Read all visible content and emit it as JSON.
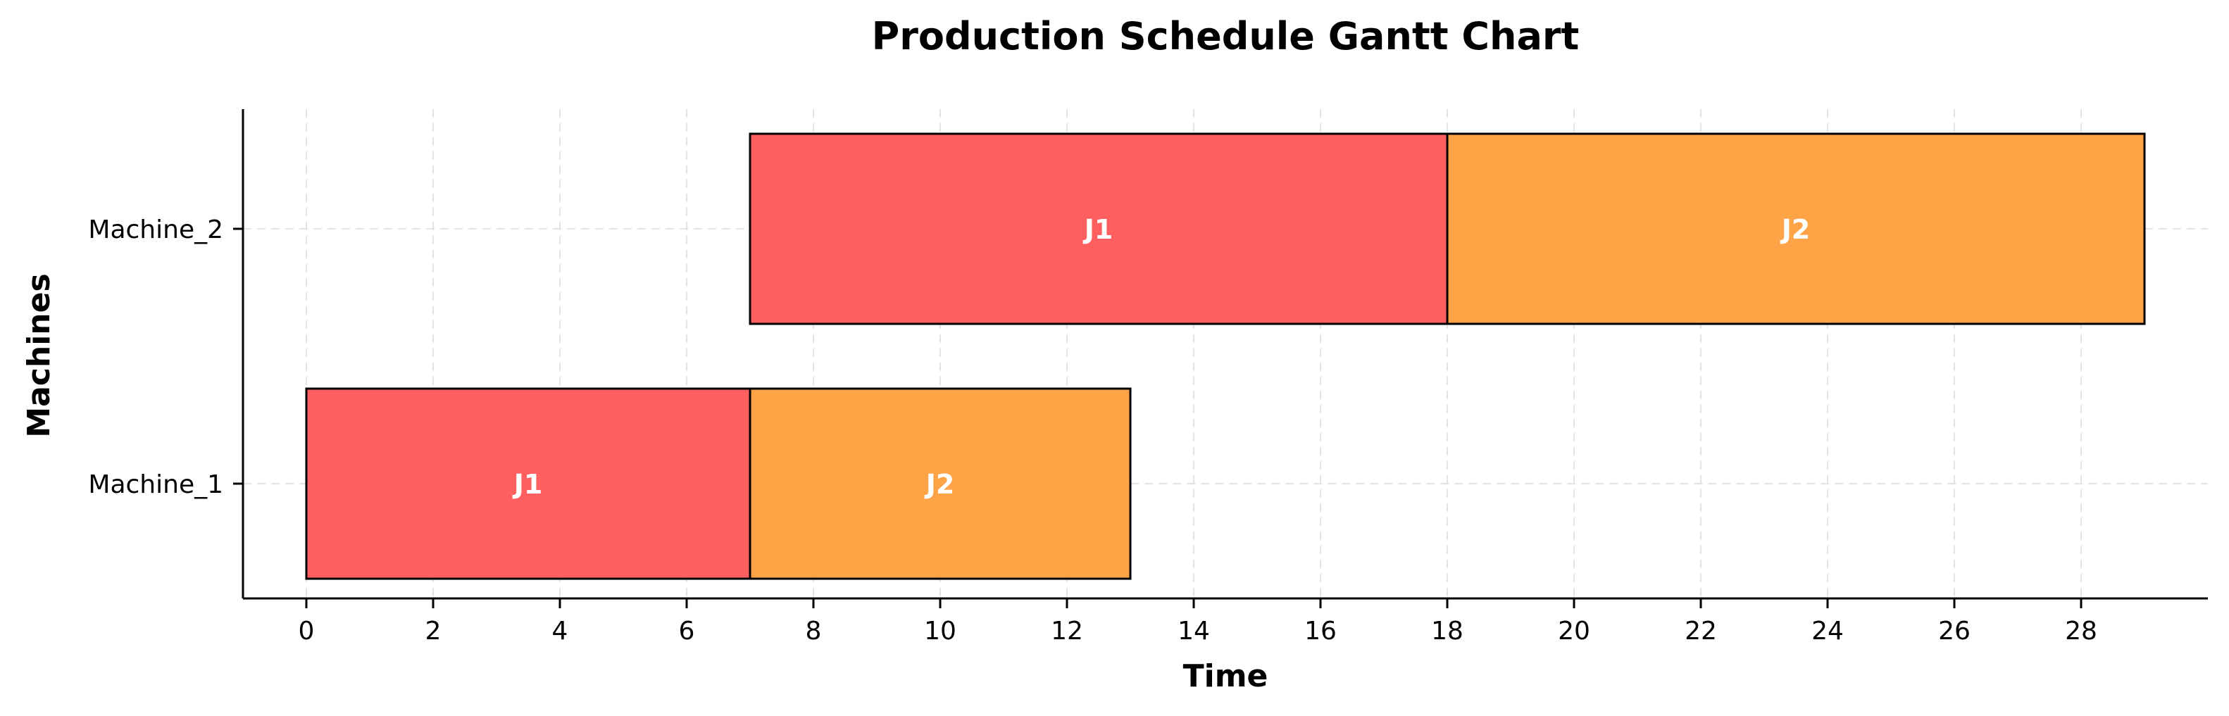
{
  "chart_data": {
    "type": "gantt",
    "title": "Production Schedule Gantt Chart",
    "xlabel": "Time",
    "ylabel": "Machines",
    "xlim": [
      -1,
      30
    ],
    "xticks": [
      0,
      2,
      4,
      6,
      8,
      10,
      12,
      14,
      16,
      18,
      20,
      22,
      24,
      26,
      28
    ],
    "categories": [
      "Machine_1",
      "Machine_2"
    ],
    "grid": true,
    "tasks": [
      {
        "machine": "Machine_1",
        "job": "J1",
        "start": 0,
        "end": 7,
        "color": "#ff5f5f"
      },
      {
        "machine": "Machine_1",
        "job": "J2",
        "start": 7,
        "end": 13,
        "color": "#ffa347"
      },
      {
        "machine": "Machine_2",
        "job": "J1",
        "start": 7,
        "end": 18,
        "color": "#ff5f5f"
      },
      {
        "machine": "Machine_2",
        "job": "J2",
        "start": 18,
        "end": 29,
        "color": "#ffa347"
      }
    ]
  }
}
